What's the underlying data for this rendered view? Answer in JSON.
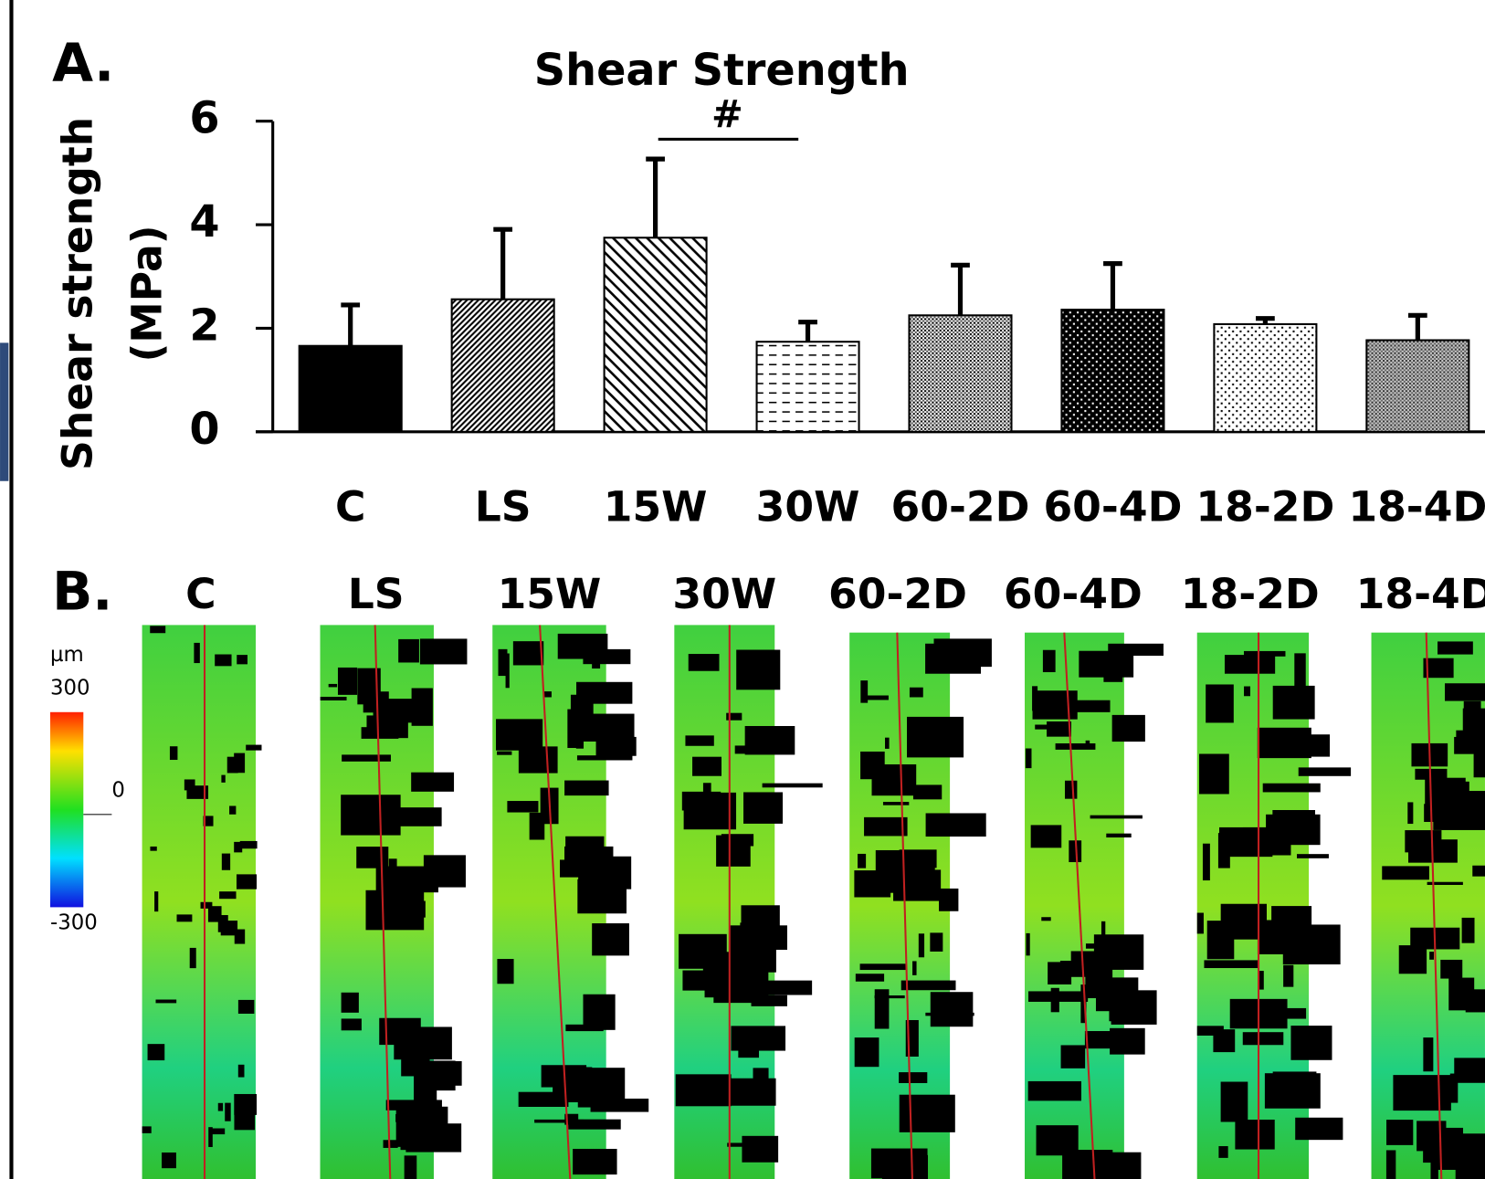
{
  "chart_data": {
    "type": "bar",
    "label": "A.",
    "title": "Shear Strength",
    "ylabel": [
      "Shear strength",
      "(MPa)"
    ],
    "categories": [
      "C",
      "LS",
      "15W",
      "30W",
      "60-2D",
      "60-4D",
      "18-2D",
      "18-4D"
    ],
    "values": [
      1.66,
      2.56,
      3.75,
      1.74,
      2.25,
      2.36,
      2.08,
      1.77
    ],
    "errors": [
      0.79,
      1.35,
      1.52,
      0.38,
      0.97,
      0.89,
      0.11,
      0.48
    ],
    "ylim": [
      0,
      6
    ],
    "yticks": [
      0,
      2,
      4,
      6
    ],
    "annotation": "#"
  },
  "image_panel": {
    "label": "B.",
    "titles": [
      "C",
      "LS",
      "15W",
      "30W",
      "60-2D",
      "60-4D",
      "18-2D",
      "18-4D"
    ],
    "colorbar": {
      "unit": "µm",
      "ticks": [
        300,
        0,
        -300
      ]
    }
  }
}
